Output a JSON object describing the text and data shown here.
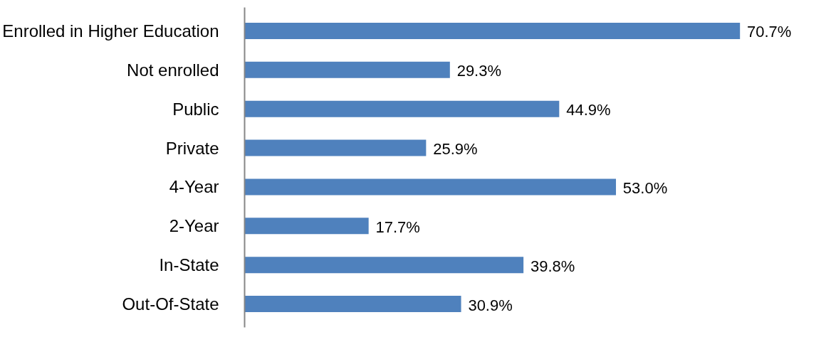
{
  "chart_data": {
    "type": "bar",
    "orientation": "horizontal",
    "categories": [
      "Enrolled in Higher Education",
      "Not enrolled",
      "Public",
      "Private",
      "4-Year",
      "2-Year",
      "In-State",
      "Out-Of-State"
    ],
    "values": [
      70.7,
      29.3,
      44.9,
      25.9,
      53.0,
      17.7,
      39.8,
      30.9
    ],
    "value_labels": [
      "70.7%",
      "29.3%",
      "44.9%",
      "25.9%",
      "53.0%",
      "17.7%",
      "39.8%",
      "30.9%"
    ],
    "color": "#4f81bd"
  }
}
